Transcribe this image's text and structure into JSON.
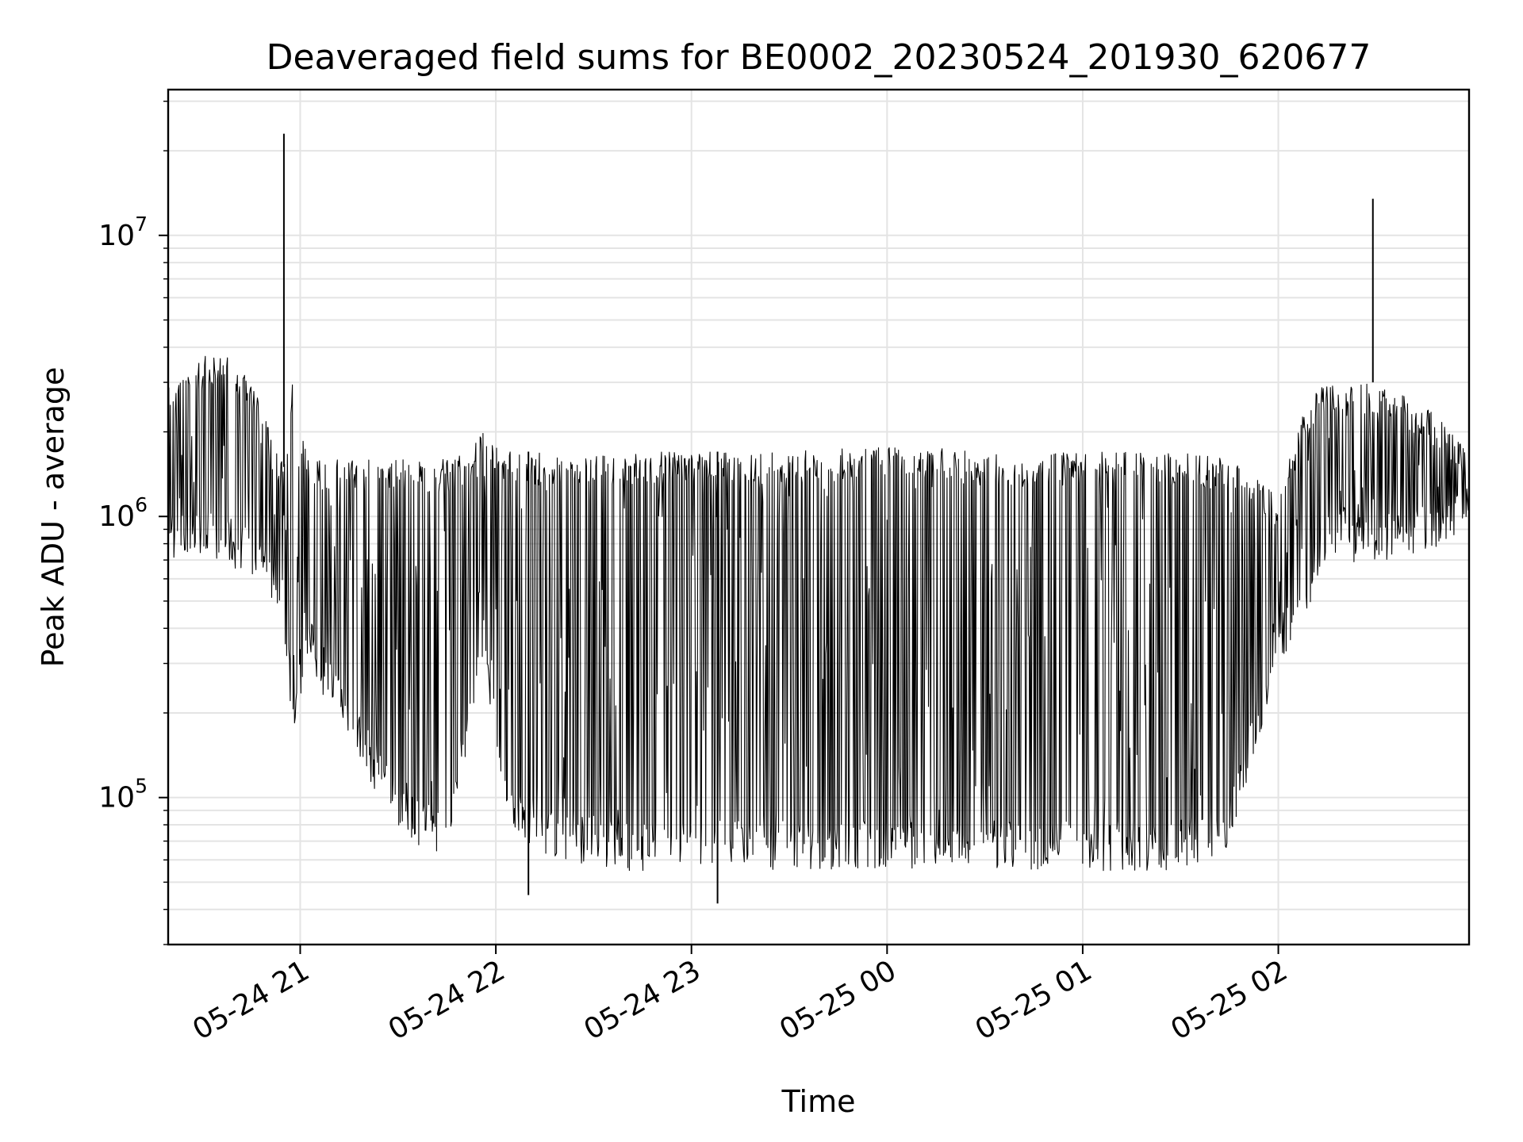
{
  "chart_data": {
    "type": "line",
    "title": "Deaveraged field sums for BE0002_20230524_201930_620677",
    "xlabel": "Time",
    "ylabel": "Peak ADU - average",
    "yscale": "log",
    "xlim": [
      "2023-05-24 20:19:30",
      "2023-05-25 02:58:30"
    ],
    "ylim": [
      30000,
      33000000
    ],
    "grid": true,
    "line_color": "#000000",
    "x_ticks": [
      "2023-05-24 21:00",
      "2023-05-24 22:00",
      "2023-05-24 23:00",
      "2023-05-25 00:00",
      "2023-05-25 01:00",
      "2023-05-25 02:00"
    ],
    "x_tick_labels": [
      "05-24 21",
      "05-24 22",
      "05-24 23",
      "05-25 00",
      "05-25 01",
      "05-25 02"
    ],
    "y_ticks": [
      100000,
      1000000,
      10000000
    ],
    "y_tick_labels": [
      {
        "base": "10",
        "exp": "5"
      },
      {
        "base": "10",
        "exp": "6"
      },
      {
        "base": "10",
        "exp": "7"
      }
    ],
    "series": [
      {
        "x": [
          "2023-05-24 20:19",
          "2023-05-24 20:35",
          "2023-05-24 20:45",
          "2023-05-24 20:51",
          "2023-05-24 20:55",
          "2023-05-24 20:58",
          "2023-05-24 21:02",
          "2023-05-24 21:08",
          "2023-05-24 21:15",
          "2023-05-24 21:22",
          "2023-05-24 21:30",
          "2023-05-24 21:38",
          "2023-05-24 21:45",
          "2023-05-24 21:52",
          "2023-05-24 21:56",
          "2023-05-24 22:05",
          "2023-05-24 22:20",
          "2023-05-24 22:40",
          "2023-05-24 23:00",
          "2023-05-24 23:30",
          "2023-05-25 00:00",
          "2023-05-25 00:30",
          "2023-05-25 01:00",
          "2023-05-25 01:30",
          "2023-05-25 01:45",
          "2023-05-25 02:00",
          "2023-05-25 02:08",
          "2023-05-25 02:15",
          "2023-05-25 02:29",
          "2023-05-25 02:45",
          "2023-05-25 02:58"
        ],
        "low": [
          700000,
          700000,
          600000,
          500000,
          400000,
          150000,
          300000,
          220000,
          160000,
          110000,
          80000,
          65000,
          60000,
          150000,
          300000,
          70000,
          60000,
          55000,
          55000,
          55000,
          55000,
          55000,
          55000,
          55000,
          65000,
          300000,
          400000,
          750000,
          650000,
          750000,
          850000
        ],
        "high": [
          3000000,
          4000000,
          3000000,
          2000000,
          1500000,
          3500000,
          1600000,
          1600000,
          1600000,
          1600000,
          1600000,
          1600000,
          1600000,
          1700000,
          2000000,
          1700000,
          1700000,
          1700000,
          1700000,
          1700000,
          1800000,
          1700000,
          1700000,
          1700000,
          1600000,
          1200000,
          2500000,
          3000000,
          3000000,
          2500000,
          1800000
        ],
        "spikes": [
          {
            "x": "2023-05-24 20:55",
            "y": 23000000
          },
          {
            "x": "2023-05-25 02:29",
            "y": 13500000
          },
          {
            "x": "2023-05-24 22:10",
            "y": 45000
          },
          {
            "x": "2023-05-24 23:08",
            "y": 42000
          }
        ]
      }
    ]
  }
}
